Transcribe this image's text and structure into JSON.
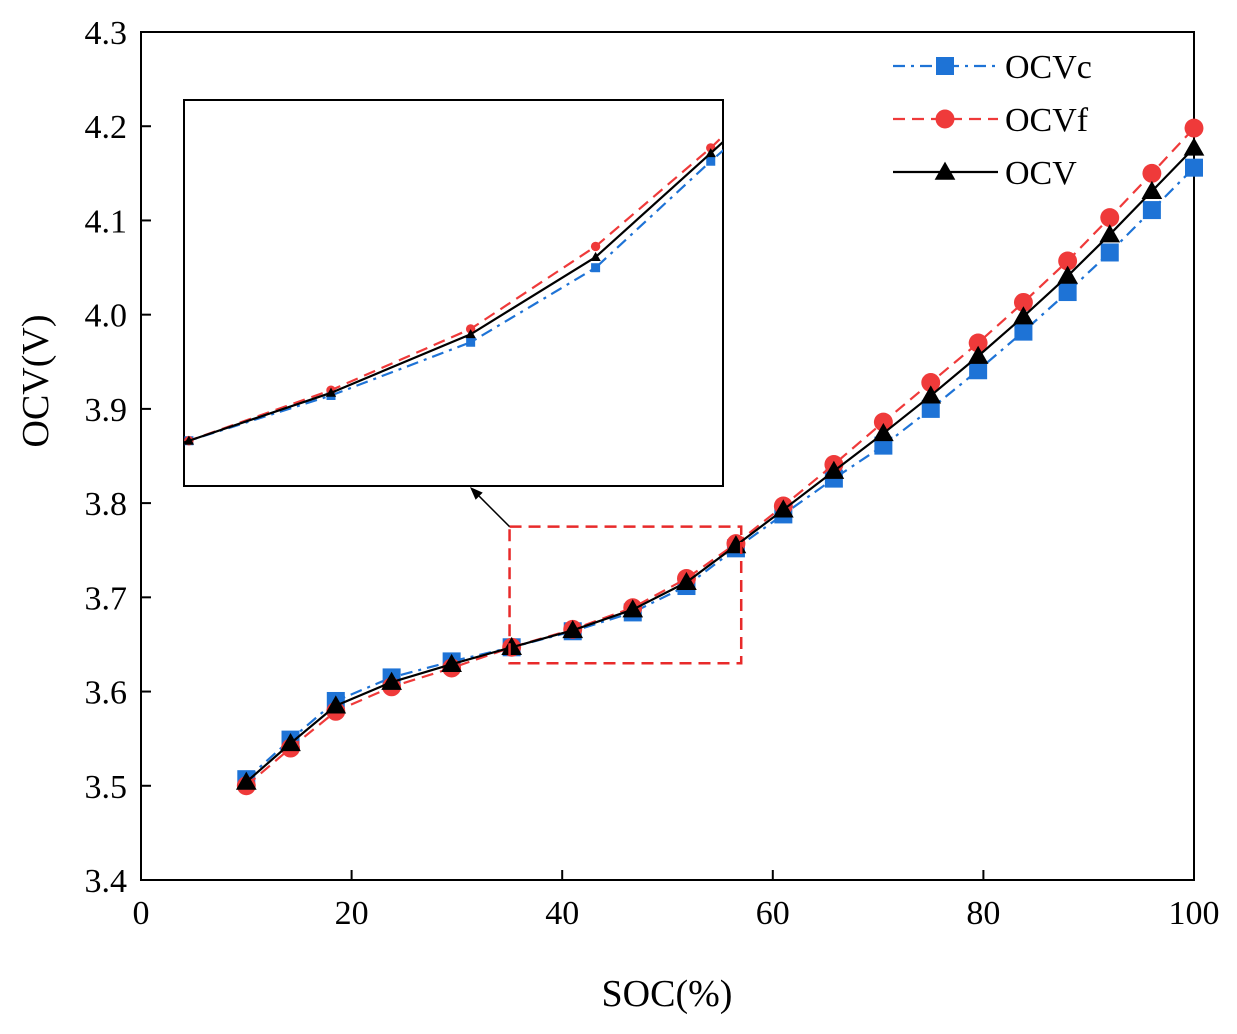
{
  "chart_data": {
    "type": "line",
    "xlabel": "SOC(%)",
    "ylabel": "OCV(V)",
    "xlim": [
      0,
      100
    ],
    "ylim": [
      3.4,
      4.3
    ],
    "xticks": [
      "0",
      "20",
      "40",
      "60",
      "80",
      "100"
    ],
    "yticks": [
      "3.4",
      "3.5",
      "3.6",
      "3.7",
      "3.8",
      "3.9",
      "4.0",
      "4.1",
      "4.2",
      "4.3"
    ],
    "legend_position": "top-right",
    "x": [
      10,
      14.2,
      18.5,
      23.8,
      29.5,
      35.2,
      41,
      46.7,
      51.8,
      56.5,
      61,
      65.8,
      70.5,
      75,
      79.5,
      83.8,
      88,
      92,
      96,
      100
    ],
    "series": [
      {
        "name": "OCVc",
        "color": "#1e73d6",
        "line_style": "dash-dot",
        "marker": "square",
        "values": [
          3.507,
          3.549,
          3.59,
          3.615,
          3.632,
          3.647,
          3.664,
          3.684,
          3.712,
          3.752,
          3.788,
          3.826,
          3.861,
          3.9,
          3.941,
          3.982,
          4.024,
          4.066,
          4.111,
          4.156
        ]
      },
      {
        "name": "OCVf",
        "color": "#ef3a3a",
        "line_style": "dashed",
        "marker": "circle",
        "values": [
          3.5,
          3.54,
          3.579,
          3.605,
          3.625,
          3.647,
          3.666,
          3.689,
          3.72,
          3.757,
          3.797,
          3.841,
          3.886,
          3.928,
          3.97,
          4.013,
          4.057,
          4.103,
          4.15,
          4.198
        ]
      },
      {
        "name": "OCV",
        "color": "#000000",
        "line_style": "solid",
        "marker": "triangle",
        "values": [
          3.504,
          3.545,
          3.585,
          3.61,
          3.629,
          3.647,
          3.665,
          3.687,
          3.716,
          3.755,
          3.793,
          3.834,
          3.874,
          3.914,
          3.956,
          3.998,
          4.041,
          4.085,
          4.131,
          4.177
        ]
      }
    ],
    "highlight_region": {
      "xlim": [
        35,
        57
      ],
      "ylim": [
        3.63,
        3.775
      ],
      "color": "#e82a2a"
    },
    "inset": {
      "description_of_view": "zoom of highlight region",
      "xlim": [
        35,
        57
      ],
      "ylim": [
        3.63,
        3.775
      ],
      "series_names": [
        "OCVc",
        "OCVf",
        "OCV"
      ]
    }
  }
}
